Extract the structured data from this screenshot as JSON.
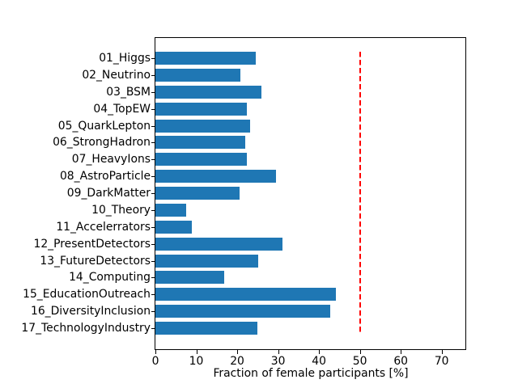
{
  "chart_data": {
    "type": "bar",
    "orientation": "horizontal",
    "title": "",
    "xlabel": "Fraction of female participants [%]",
    "ylabel": "",
    "categories": [
      "01_Higgs",
      "02_Neutrino",
      "03_BSM",
      "04_TopEW",
      "05_QuarkLepton",
      "06_StrongHadron",
      "07_HeavyIons",
      "08_AstroParticle",
      "09_DarkMatter",
      "10_Theory",
      "11_Accelerrators",
      "12_PresentDetectors",
      "13_FutureDetectors",
      "14_Computing",
      "15_EducationOutreach",
      "16_DiversityInclusion",
      "17_TechnologyIndustry"
    ],
    "values": [
      24.5,
      20.8,
      25.9,
      22.3,
      23.2,
      22.0,
      22.3,
      29.5,
      20.6,
      7.5,
      8.9,
      31.0,
      25.2,
      16.9,
      44.2,
      42.7,
      25.0
    ],
    "xlim": [
      0,
      76
    ],
    "xticks": [
      0,
      10,
      20,
      30,
      40,
      50,
      60,
      70
    ],
    "reference_line": {
      "x": 50,
      "color": "#ff0000",
      "style": "dashed"
    },
    "bar_color": "#1f77b4",
    "grid": false,
    "legend_position": "none"
  }
}
